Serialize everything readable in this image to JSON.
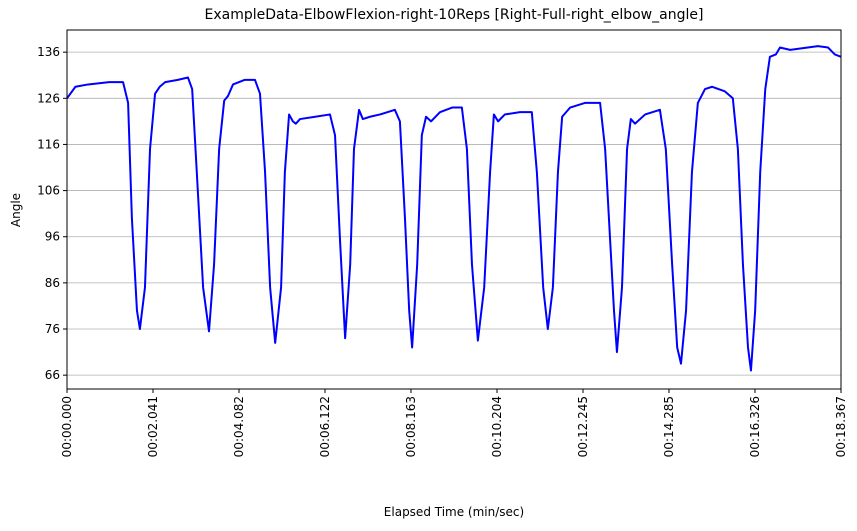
{
  "chart_data": {
    "type": "line",
    "title": "ExampleData-ElbowFlexion-right-10Reps [Right-Full-right_elbow_angle]",
    "x_label": "Elapsed Time (min/sec)",
    "y_label": "Angle",
    "xlim": [
      0,
      18.367
    ],
    "ylim": [
      63,
      140.8
    ],
    "xticks": [
      {
        "value": 0,
        "label": "00:00.000"
      },
      {
        "value": 2.041,
        "label": "00:02.041"
      },
      {
        "value": 4.082,
        "label": "00:04.082"
      },
      {
        "value": 6.122,
        "label": "00:06.122"
      },
      {
        "value": 8.163,
        "label": "00:08.163"
      },
      {
        "value": 10.204,
        "label": "00:10.204"
      },
      {
        "value": 12.245,
        "label": "00:12.245"
      },
      {
        "value": 14.285,
        "label": "00:14.285"
      },
      {
        "value": 16.326,
        "label": "00:16.326"
      },
      {
        "value": 18.367,
        "label": "00:18.367"
      }
    ],
    "yticks": [
      66,
      76,
      86,
      96,
      106,
      116,
      126,
      136
    ],
    "grid": "y",
    "x": [
      0,
      0.2,
      0.5,
      1.0,
      1.33,
      1.45,
      1.54,
      1.66,
      1.73,
      1.85,
      1.97,
      2.09,
      2.2,
      2.33,
      2.63,
      2.87,
      2.97,
      3.08,
      3.23,
      3.37,
      3.49,
      3.61,
      3.73,
      3.82,
      3.94,
      4.22,
      4.46,
      4.58,
      4.7,
      4.82,
      4.94,
      5.08,
      5.17,
      5.27,
      5.36,
      5.43,
      5.53,
      5.89,
      6.24,
      6.36,
      6.48,
      6.6,
      6.72,
      6.81,
      6.93,
      7.02,
      7.19,
      7.43,
      7.78,
      7.9,
      8.02,
      8.12,
      8.19,
      8.31,
      8.42,
      8.52,
      8.64,
      8.85,
      9.14,
      9.37,
      9.49,
      9.61,
      9.75,
      9.9,
      10.04,
      10.13,
      10.23,
      10.39,
      10.75,
      11.03,
      11.15,
      11.3,
      11.41,
      11.53,
      11.65,
      11.75,
      11.94,
      12.29,
      12.65,
      12.77,
      12.89,
      12.98,
      13.05,
      13.17,
      13.29,
      13.38,
      13.48,
      13.72,
      14.07,
      14.21,
      14.36,
      14.48,
      14.57,
      14.69,
      14.83,
      14.97,
      15.14,
      15.31,
      15.61,
      15.8,
      15.92,
      16.04,
      16.16,
      16.23,
      16.33,
      16.45,
      16.57,
      16.68,
      16.82,
      16.92,
      17.16,
      17.82,
      18.06,
      18.22,
      18.367
    ],
    "series": [
      {
        "name": "right_elbow_angle",
        "color": "#0000ff",
        "values": [
          126,
          128.5,
          129,
          129.5,
          129.5,
          125,
          100,
          80,
          76,
          85,
          115,
          127,
          128.5,
          129.5,
          130,
          130.5,
          128,
          110,
          85,
          75.5,
          90,
          115,
          125.5,
          126.5,
          129,
          130,
          130,
          127,
          110,
          85,
          73,
          85,
          110,
          122.5,
          121,
          120.5,
          121.5,
          122,
          122.5,
          118,
          95,
          74,
          90,
          115,
          123.5,
          121.5,
          122,
          122.5,
          123.5,
          121,
          100,
          80,
          72,
          90,
          118,
          122,
          121,
          123,
          124,
          124,
          115,
          90,
          73.5,
          85,
          110,
          122.5,
          121,
          122.5,
          123,
          123,
          110,
          85,
          76,
          85,
          110,
          122,
          124,
          125,
          125,
          115,
          95,
          80,
          71,
          85,
          115,
          121.5,
          120.5,
          122.5,
          123.5,
          115,
          90,
          72,
          68.5,
          80,
          110,
          125,
          128,
          128.5,
          127.5,
          126,
          115,
          90,
          72,
          67,
          80,
          110,
          128,
          135,
          135.5,
          137,
          136.5,
          137.3,
          137,
          135.5,
          135
        ]
      }
    ]
  }
}
